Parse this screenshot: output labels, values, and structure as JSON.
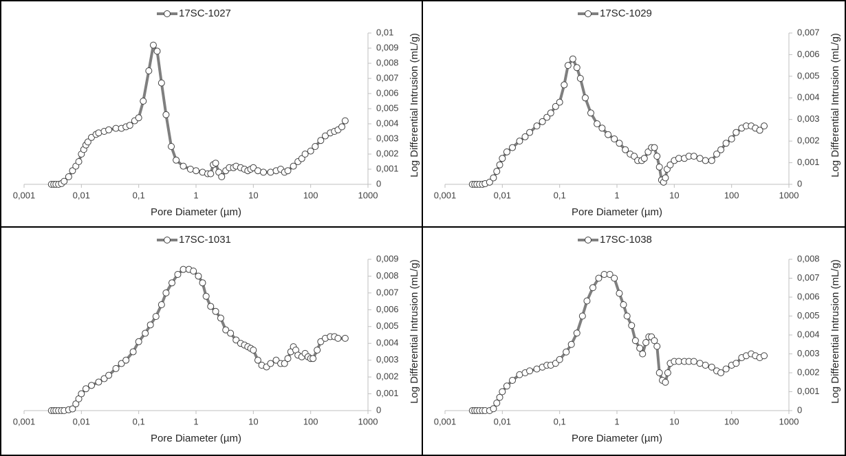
{
  "chart_data": [
    {
      "type": "line",
      "xscale": "log",
      "yaxis_side": "right",
      "legend": "top",
      "xlabel": "Pore Diameter (µm)",
      "ylabel": "Log Differential Intrusion (mL/g)",
      "xlim": [
        0.001,
        1000
      ],
      "xticks": [
        {
          "value": 0.001,
          "label": "0,001"
        },
        {
          "value": 0.01,
          "label": "0,01"
        },
        {
          "value": 0.1,
          "label": "0,1"
        },
        1,
        10,
        100,
        1000
      ],
      "ylim": [
        0,
        0.01
      ],
      "yticks": [
        0,
        {
          "value": 0.001,
          "label": "0,001"
        },
        {
          "value": 0.002,
          "label": "0,002"
        },
        {
          "value": 0.003,
          "label": "0,003"
        },
        {
          "value": 0.004,
          "label": "0,004"
        },
        {
          "value": 0.005,
          "label": "0,005"
        },
        {
          "value": 0.006,
          "label": "0,006"
        },
        {
          "value": 0.007,
          "label": "0,007"
        },
        {
          "value": 0.008,
          "label": "0,008"
        },
        {
          "value": 0.009,
          "label": "0,009"
        },
        {
          "value": 0.01,
          "label": "0,01"
        }
      ],
      "x": [
        0.003,
        0.0033,
        0.0036,
        0.004,
        0.0045,
        0.005,
        0.006,
        0.007,
        0.008,
        0.009,
        0.01,
        0.011,
        0.012,
        0.013,
        0.015,
        0.018,
        0.02,
        0.025,
        0.03,
        0.04,
        0.05,
        0.06,
        0.07,
        0.085,
        0.1,
        0.12,
        0.15,
        0.18,
        0.21,
        0.25,
        0.3,
        0.37,
        0.45,
        0.6,
        0.8,
        1,
        1.3,
        1.6,
        1.8,
        2,
        2.2,
        2.5,
        2.8,
        3.3,
        3.8,
        4.5,
        5,
        6,
        7,
        8,
        9,
        10,
        12,
        15,
        20,
        25,
        30,
        35,
        40,
        50,
        60,
        70,
        80,
        100,
        120,
        150,
        180,
        220,
        260,
        300,
        350,
        400
      ],
      "series": [
        {
          "name": "17SC-1027",
          "color": "#7f7f7f",
          "marker_color": "#ffffff",
          "values": [
            0,
            0,
            0,
            0,
            5e-05,
            0.0002,
            0.0005,
            0.0009,
            0.0012,
            0.0015,
            0.002,
            0.0023,
            0.0026,
            0.0028,
            0.0031,
            0.0033,
            0.0034,
            0.0035,
            0.0036,
            0.0037,
            0.0037,
            0.0038,
            0.0039,
            0.0042,
            0.0044,
            0.0055,
            0.0075,
            0.0092,
            0.0088,
            0.0067,
            0.0046,
            0.0025,
            0.0016,
            0.0012,
            0.001,
            0.0009,
            0.0008,
            0.0007,
            0.0007,
            0.0013,
            0.0014,
            0.0008,
            0.0005,
            0.0009,
            0.0011,
            0.0011,
            0.0012,
            0.0011,
            0.001,
            0.0009,
            0.001,
            0.0011,
            0.0009,
            0.0008,
            0.0008,
            0.0009,
            0.001,
            0.0008,
            0.0009,
            0.0012,
            0.0015,
            0.0017,
            0.002,
            0.0022,
            0.0025,
            0.0029,
            0.0032,
            0.0034,
            0.0035,
            0.0036,
            0.0038,
            0.0042
          ]
        }
      ]
    },
    {
      "type": "line",
      "xscale": "log",
      "yaxis_side": "right",
      "legend": "top",
      "xlabel": "Pore Diameter (µm)",
      "ylabel": "Log Differential Intrusion (mL/g)",
      "xlim": [
        0.001,
        1000
      ],
      "xticks": [
        {
          "value": 0.001,
          "label": "0,001"
        },
        {
          "value": 0.01,
          "label": "0,01"
        },
        {
          "value": 0.1,
          "label": "0,1"
        },
        1,
        10,
        100,
        1000
      ],
      "ylim": [
        0,
        0.007
      ],
      "yticks": [
        0,
        {
          "value": 0.001,
          "label": "0,001"
        },
        {
          "value": 0.002,
          "label": "0,002"
        },
        {
          "value": 0.003,
          "label": "0,003"
        },
        {
          "value": 0.004,
          "label": "0,004"
        },
        {
          "value": 0.005,
          "label": "0,005"
        },
        {
          "value": 0.006,
          "label": "0,006"
        },
        {
          "value": 0.007,
          "label": "0,007"
        }
      ],
      "x": [
        0.003,
        0.0033,
        0.0036,
        0.004,
        0.0045,
        0.005,
        0.006,
        0.007,
        0.008,
        0.009,
        0.01,
        0.012,
        0.015,
        0.02,
        0.025,
        0.03,
        0.04,
        0.05,
        0.06,
        0.07,
        0.085,
        0.1,
        0.12,
        0.14,
        0.17,
        0.2,
        0.23,
        0.28,
        0.35,
        0.45,
        0.55,
        0.7,
        0.9,
        1.1,
        1.4,
        1.7,
        2,
        2.3,
        2.7,
        3,
        3.5,
        4,
        4.5,
        5,
        5.5,
        6,
        6.5,
        7,
        7.5,
        8.5,
        10,
        12,
        15,
        18,
        22,
        28,
        35,
        45,
        55,
        65,
        80,
        100,
        120,
        150,
        180,
        220,
        260,
        310,
        370
      ],
      "series": [
        {
          "name": "17SC-1029",
          "color": "#7f7f7f",
          "marker_color": "#ffffff",
          "values": [
            0,
            0,
            0,
            0,
            0,
            3e-05,
            0.0001,
            0.0003,
            0.0006,
            0.0009,
            0.0012,
            0.0015,
            0.0017,
            0.002,
            0.0022,
            0.0024,
            0.0027,
            0.0029,
            0.0031,
            0.0033,
            0.0036,
            0.0038,
            0.0046,
            0.0055,
            0.0058,
            0.0054,
            0.0049,
            0.004,
            0.0033,
            0.0028,
            0.0026,
            0.0023,
            0.0021,
            0.0019,
            0.0016,
            0.0014,
            0.0013,
            0.0011,
            0.0011,
            0.0012,
            0.0015,
            0.0017,
            0.0017,
            0.0013,
            0.0008,
            0.0002,
            0.0001,
            0.0003,
            0.0007,
            0.0009,
            0.0011,
            0.0012,
            0.0012,
            0.0013,
            0.0013,
            0.0012,
            0.0011,
            0.0011,
            0.0014,
            0.0016,
            0.0019,
            0.0021,
            0.0024,
            0.0026,
            0.0027,
            0.0027,
            0.0026,
            0.0025,
            0.0027
          ]
        }
      ]
    },
    {
      "type": "line",
      "xscale": "log",
      "yaxis_side": "right",
      "legend": "top",
      "xlabel": "Pore Diameter (µm)",
      "ylabel": "Log Differential Intrusion (mL/g)",
      "xlim": [
        0.001,
        1000
      ],
      "xticks": [
        {
          "value": 0.001,
          "label": "0,001"
        },
        {
          "value": 0.01,
          "label": "0,01"
        },
        {
          "value": 0.1,
          "label": "0,1"
        },
        1,
        10,
        100,
        1000
      ],
      "ylim": [
        0,
        0.009
      ],
      "yticks": [
        0,
        {
          "value": 0.001,
          "label": "0,001"
        },
        {
          "value": 0.002,
          "label": "0,002"
        },
        {
          "value": 0.003,
          "label": "0,003"
        },
        {
          "value": 0.004,
          "label": "0,004"
        },
        {
          "value": 0.005,
          "label": "0,005"
        },
        {
          "value": 0.006,
          "label": "0,006"
        },
        {
          "value": 0.007,
          "label": "0,007"
        },
        {
          "value": 0.008,
          "label": "0,008"
        },
        {
          "value": 0.009,
          "label": "0,009"
        }
      ],
      "x": [
        0.003,
        0.0033,
        0.0036,
        0.004,
        0.0045,
        0.005,
        0.006,
        0.007,
        0.008,
        0.009,
        0.01,
        0.012,
        0.015,
        0.02,
        0.025,
        0.03,
        0.04,
        0.05,
        0.06,
        0.08,
        0.1,
        0.13,
        0.16,
        0.2,
        0.25,
        0.3,
        0.38,
        0.48,
        0.6,
        0.75,
        0.9,
        1.1,
        1.3,
        1.5,
        1.8,
        2.2,
        2.7,
        3.3,
        4,
        5,
        6,
        7,
        8,
        9,
        10,
        12,
        14,
        17,
        20,
        25,
        30,
        35,
        40,
        45,
        50,
        55,
        60,
        70,
        80,
        90,
        100,
        110,
        130,
        150,
        180,
        220,
        260,
        300,
        400
      ],
      "series": [
        {
          "name": "17SC-1031",
          "color": "#7f7f7f",
          "marker_color": "#ffffff",
          "values": [
            0,
            0,
            0,
            0,
            0,
            0,
            5e-05,
            0.0001,
            0.0004,
            0.0007,
            0.001,
            0.0013,
            0.0015,
            0.0017,
            0.0019,
            0.0021,
            0.0025,
            0.0028,
            0.003,
            0.0035,
            0.0041,
            0.0046,
            0.0051,
            0.0056,
            0.0063,
            0.007,
            0.0076,
            0.0081,
            0.0084,
            0.0084,
            0.0083,
            0.008,
            0.0076,
            0.0068,
            0.0062,
            0.0059,
            0.0055,
            0.0048,
            0.0046,
            0.0042,
            0.004,
            0.0039,
            0.0038,
            0.0037,
            0.0036,
            0.003,
            0.0027,
            0.0026,
            0.0028,
            0.003,
            0.0028,
            0.0028,
            0.0031,
            0.0035,
            0.0038,
            0.0036,
            0.0033,
            0.0032,
            0.0034,
            0.0032,
            0.0031,
            0.0031,
            0.0036,
            0.0041,
            0.0043,
            0.0044,
            0.0044,
            0.0043,
            0.0043
          ]
        }
      ]
    },
    {
      "type": "line",
      "xscale": "log",
      "yaxis_side": "right",
      "legend": "top",
      "xlabel": "Pore Diameter (µm)",
      "ylabel": "Log Differential Intrusion (mL/g)",
      "xlim": [
        0.001,
        1000
      ],
      "xticks": [
        {
          "value": 0.001,
          "label": "0,001"
        },
        {
          "value": 0.01,
          "label": "0,01"
        },
        {
          "value": 0.1,
          "label": "0,1"
        },
        1,
        10,
        100,
        1000
      ],
      "ylim": [
        0,
        0.008
      ],
      "yticks": [
        0,
        {
          "value": 0.001,
          "label": "0,001"
        },
        {
          "value": 0.002,
          "label": "0,002"
        },
        {
          "value": 0.003,
          "label": "0,003"
        },
        {
          "value": 0.004,
          "label": "0,004"
        },
        {
          "value": 0.005,
          "label": "0,005"
        },
        {
          "value": 0.006,
          "label": "0,006"
        },
        {
          "value": 0.007,
          "label": "0,007"
        },
        {
          "value": 0.008,
          "label": "0,008"
        }
      ],
      "x": [
        0.003,
        0.0033,
        0.0036,
        0.004,
        0.0045,
        0.005,
        0.006,
        0.007,
        0.008,
        0.009,
        0.01,
        0.012,
        0.015,
        0.02,
        0.025,
        0.03,
        0.04,
        0.05,
        0.06,
        0.07,
        0.085,
        0.1,
        0.13,
        0.16,
        0.2,
        0.25,
        0.3,
        0.38,
        0.48,
        0.6,
        0.75,
        0.9,
        1.1,
        1.3,
        1.5,
        1.8,
        2.1,
        2.5,
        2.8,
        3.2,
        3.6,
        4,
        4.5,
        5,
        5.5,
        6.2,
        7,
        7.7,
        8.5,
        10,
        12,
        15,
        18,
        22,
        28,
        35,
        45,
        55,
        65,
        80,
        100,
        120,
        150,
        180,
        220,
        260,
        310,
        370
      ],
      "series": [
        {
          "name": "17SC-1038",
          "color": "#7f7f7f",
          "marker_color": "#ffffff",
          "values": [
            0,
            0,
            0,
            0,
            0,
            0,
            0,
            0.0001,
            0.0004,
            0.0007,
            0.001,
            0.0013,
            0.0016,
            0.0019,
            0.002,
            0.0021,
            0.0022,
            0.0023,
            0.0024,
            0.0024,
            0.0025,
            0.0027,
            0.0031,
            0.0035,
            0.0041,
            0.005,
            0.0058,
            0.0065,
            0.007,
            0.0072,
            0.0072,
            0.007,
            0.0062,
            0.0056,
            0.005,
            0.0045,
            0.0037,
            0.0033,
            0.003,
            0.0036,
            0.0039,
            0.0039,
            0.0037,
            0.0034,
            0.002,
            0.0016,
            0.0015,
            0.002,
            0.0025,
            0.0026,
            0.0026,
            0.0026,
            0.0026,
            0.0026,
            0.0025,
            0.0024,
            0.0023,
            0.0021,
            0.002,
            0.0022,
            0.0024,
            0.0025,
            0.0028,
            0.0029,
            0.003,
            0.0029,
            0.0028,
            0.0029
          ]
        }
      ]
    }
  ]
}
